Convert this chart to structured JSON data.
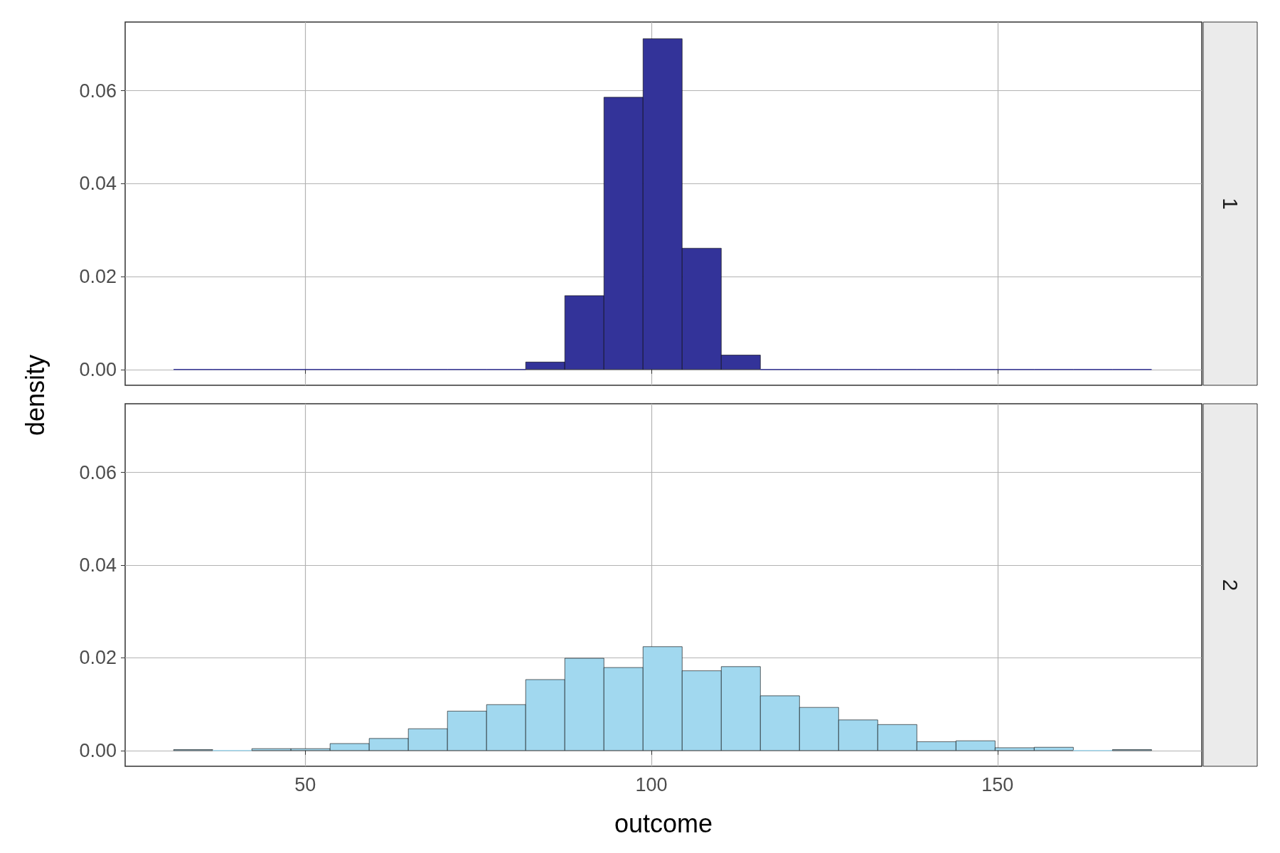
{
  "chart_data": [
    {
      "type": "histogram",
      "annotations": [
        "1"
      ],
      "ylabel": "density",
      "color": "#333399",
      "bins": [
        31.0,
        36.65,
        42.3,
        47.95,
        53.6,
        59.25,
        64.9,
        70.55,
        76.2,
        81.85,
        87.5,
        93.15,
        98.8,
        104.45,
        110.1,
        115.75,
        121.4,
        127.05,
        132.7,
        138.35,
        144.0,
        149.65,
        155.3,
        160.95,
        166.6,
        172.25
      ],
      "values": [
        0,
        0,
        0,
        0,
        0,
        0,
        0,
        0,
        0,
        0.0016,
        0.0159,
        0.0586,
        0.0712,
        0.0261,
        0.0031,
        0,
        0,
        0,
        0,
        0,
        0,
        0,
        0,
        0,
        0
      ],
      "xlim": [
        24,
        179.5
      ],
      "xticks": [
        50,
        100,
        150
      ],
      "ylim": [
        -0.0034,
        0.0748
      ],
      "yticks": [
        {
          "value": 0,
          "label": "0.00"
        },
        {
          "value": 0.02,
          "label": "0.02"
        },
        {
          "value": 0.04,
          "label": "0.04"
        },
        {
          "value": 0.06,
          "label": "0.06"
        }
      ],
      "grid": true,
      "tick_labels": "y"
    },
    {
      "type": "histogram",
      "annotations": [
        "2"
      ],
      "xlabel": "outcome",
      "color": "#a1d8ef",
      "bins": [
        31.0,
        36.65,
        42.3,
        47.95,
        53.6,
        59.25,
        64.9,
        70.55,
        76.2,
        81.85,
        87.5,
        93.15,
        98.8,
        104.45,
        110.1,
        115.75,
        121.4,
        127.05,
        132.7,
        138.35,
        144.0,
        149.65,
        155.3,
        160.95,
        166.6,
        172.25
      ],
      "values": [
        0.0002,
        0,
        0.0004,
        0.0004,
        0.0015,
        0.0026,
        0.0047,
        0.0085,
        0.0099,
        0.0153,
        0.0199,
        0.0179,
        0.0224,
        0.0172,
        0.0181,
        0.0118,
        0.0093,
        0.0066,
        0.0056,
        0.0019,
        0.0021,
        0.0006,
        0.0007,
        0,
        0.0002
      ],
      "xlim": [
        24,
        179.5
      ],
      "xticks": [
        50,
        100,
        150
      ],
      "ylim": [
        -0.0034,
        0.0748
      ],
      "yticks": [
        {
          "value": 0,
          "label": "0.00"
        },
        {
          "value": 0.02,
          "label": "0.02"
        },
        {
          "value": 0.04,
          "label": "0.04"
        },
        {
          "value": 0.06,
          "label": "0.06"
        }
      ],
      "grid": true
    }
  ]
}
